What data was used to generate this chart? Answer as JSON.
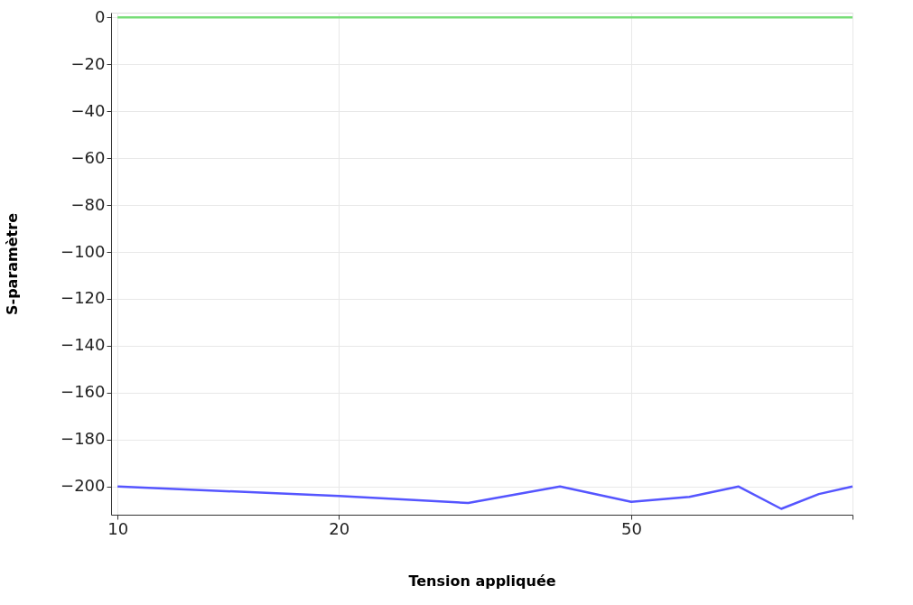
{
  "chart_data": {
    "type": "line",
    "xlabel": "Tension appliquée",
    "ylabel": "S-paramètre",
    "log": "x",
    "grid": true,
    "marker": "none",
    "line_style": "solid",
    "xlim": [
      9.8,
      100
    ],
    "xticks": [
      10,
      20,
      50,
      {
        "value": 100,
        "label": null
      }
    ],
    "ylim": [
      -212,
      2
    ],
    "yticks": [
      -200,
      -180,
      -160,
      -140,
      -120,
      -100,
      -80,
      -60,
      -40,
      -20,
      0
    ],
    "x": [
      10,
      20,
      30,
      40,
      50,
      60,
      70,
      80,
      90,
      100
    ],
    "series": [
      {
        "color": "#5555ff",
        "values": [
          -200,
          -204,
          -207,
          -200,
          -206.5,
          -204.4,
          -200,
          -209.5,
          -203.2,
          -200
        ]
      },
      {
        "color": "#77dd77",
        "values": [
          0,
          0,
          0,
          0,
          0,
          0,
          0,
          0,
          0,
          0
        ]
      }
    ]
  }
}
